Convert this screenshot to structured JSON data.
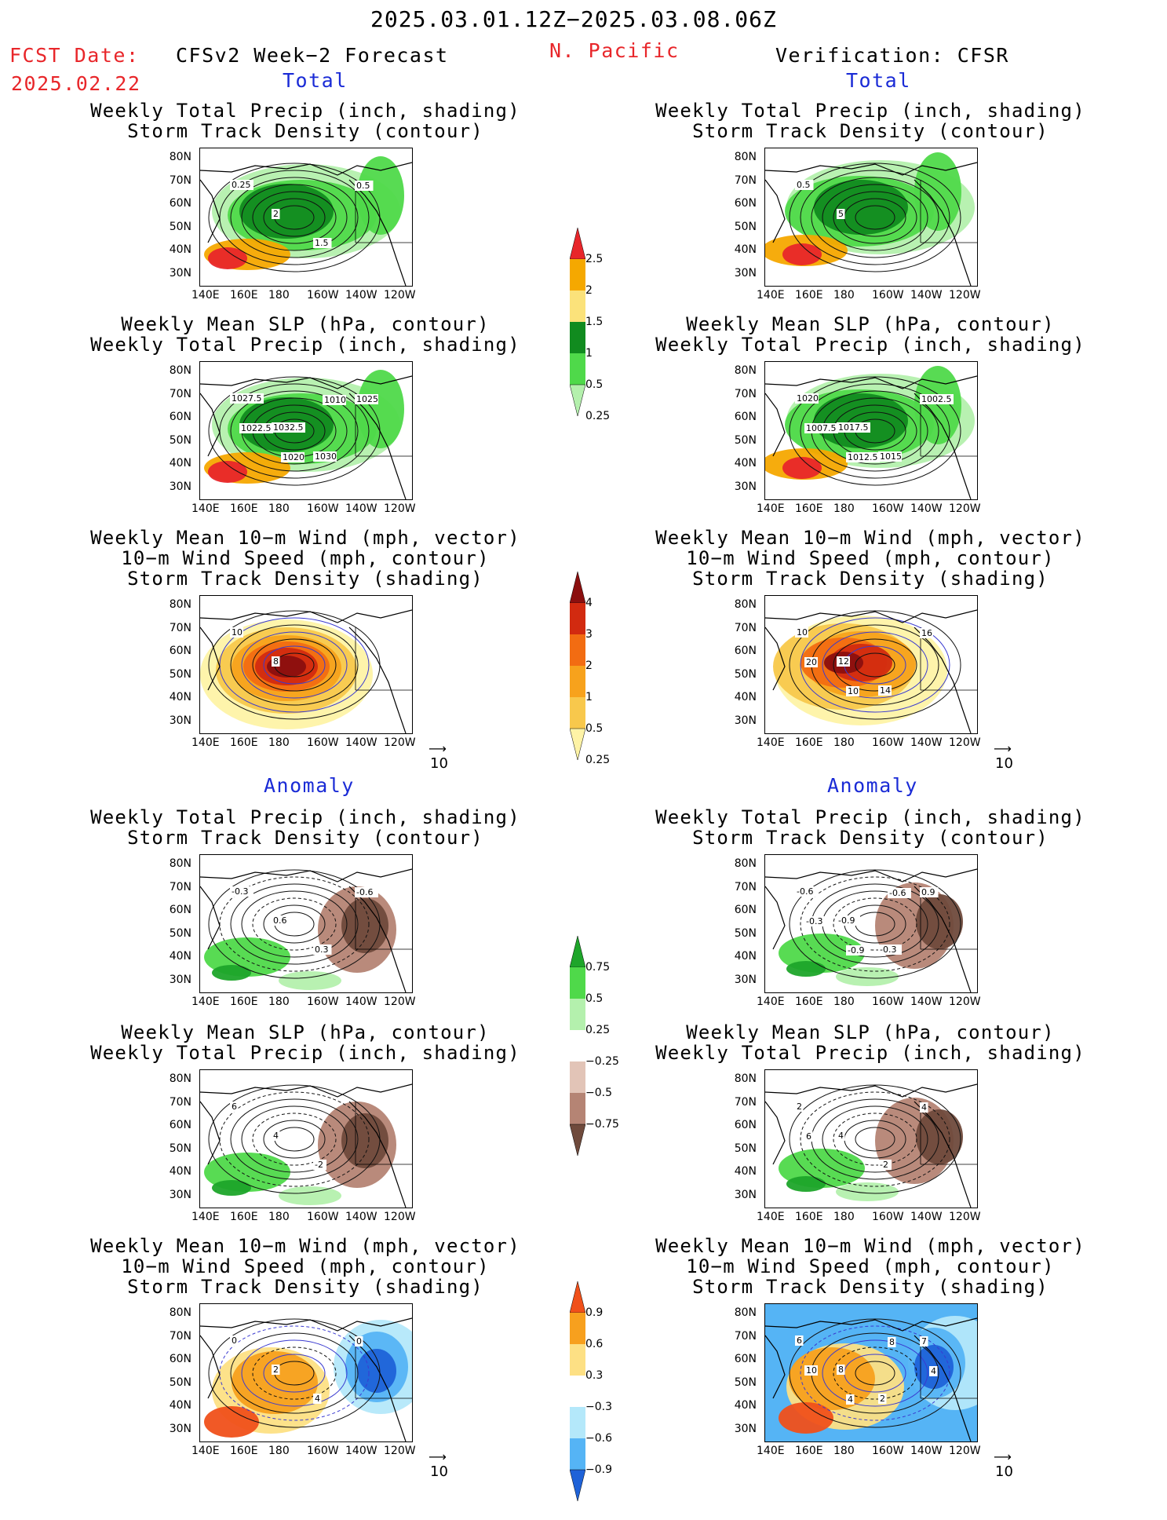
{
  "header": {
    "date_range": "2025.03.01.12Z−2025.03.08.06Z",
    "fcst_label": "FCST Date:",
    "fcst_date": "2025.02.22",
    "model": "CFSv2 Week−2 Forecast",
    "region": "N. Pacific",
    "verification": "Verification: CFSR"
  },
  "sections": {
    "total": "Total",
    "anomaly": "Anomaly"
  },
  "panel_titles": {
    "precip_storm": [
      "Weekly Total Precip (inch, shading)",
      "Storm Track Density (contour)"
    ],
    "slp_precip": [
      "Weekly Mean SLP (hPa, contour)",
      "Weekly Total Precip (inch, shading)"
    ],
    "wind_storm": [
      "Weekly Mean 10−m Wind (mph, vector)",
      "10−m Wind Speed (mph, contour)",
      "Storm Track Density (shading)"
    ]
  },
  "axes": {
    "lat": [
      "80N",
      "70N",
      "60N",
      "50N",
      "40N",
      "30N"
    ],
    "lon": [
      "140E",
      "160E",
      "180",
      "160W",
      "140W",
      "120W"
    ]
  },
  "vector_ref": "10",
  "colorbars": {
    "precip_total": {
      "labels": [
        "2.5",
        "2",
        "1.5",
        "1",
        "0.5",
        "0.25"
      ],
      "colors": [
        "#e8262a",
        "#f5a800",
        "#fbe27a",
        "#118b1f",
        "#4fd94a",
        "#b4f0ad"
      ]
    },
    "storm_total": {
      "labels": [
        "4",
        "3",
        "2",
        "1",
        "0.5",
        "0.25"
      ],
      "colors": [
        "#8b0f0f",
        "#d22a10",
        "#f26c12",
        "#f7a21c",
        "#f8c84c",
        "#fef3a6"
      ]
    },
    "precip_anom": {
      "labels": [
        "0.75",
        "0.5",
        "0.25",
        "−0.25",
        "−0.5",
        "−0.75"
      ],
      "colors": [
        "#1ea52a",
        "#4fd94a",
        "#b4f0ad",
        "#ffffff",
        "#e2c4b7",
        "#b58474",
        "#6f4a3c"
      ]
    },
    "storm_anom": {
      "labels": [
        "0.9",
        "0.6",
        "0.3",
        "−0.3",
        "−0.6",
        "−0.9"
      ],
      "colors": [
        "#f0501a",
        "#f7a01e",
        "#fde084",
        "#ffffff",
        "#b4e8fa",
        "#55b4f5",
        "#1f62d8"
      ]
    }
  },
  "contour_labels": {
    "f_total_precip": [
      "0.25",
      "2",
      "1.5",
      "0.5"
    ],
    "v_total_precip": [
      "0.5",
      "5"
    ],
    "f_total_slp": [
      "1027.5",
      "1032.5",
      "1030",
      "1025",
      "1022.5",
      "1020",
      "1010"
    ],
    "v_total_slp": [
      "1020",
      "1017.5",
      "1015",
      "1002.5",
      "1007.5",
      "1012.5"
    ],
    "f_total_wind": [
      "10",
      "8"
    ],
    "v_total_wind": [
      "10",
      "12",
      "14",
      "16",
      "20",
      "10"
    ],
    "f_anom_precip": [
      "-0.3",
      "0.6",
      "0.3",
      "-0.6"
    ],
    "v_anom_precip": [
      "-0.6",
      "-0.9",
      "-0.3",
      "0.9",
      "-0.3",
      "-0.9",
      "-0.6"
    ],
    "f_anom_slp": [
      "6",
      "4",
      "-2"
    ],
    "v_anom_slp": [
      "2",
      "4",
      "-2",
      "4",
      "6"
    ],
    "f_anom_wind": [
      "0",
      "2",
      "4",
      "0"
    ],
    "v_anom_wind": [
      "6",
      "8",
      "2",
      "7",
      "10",
      "4",
      "8",
      "4"
    ]
  }
}
